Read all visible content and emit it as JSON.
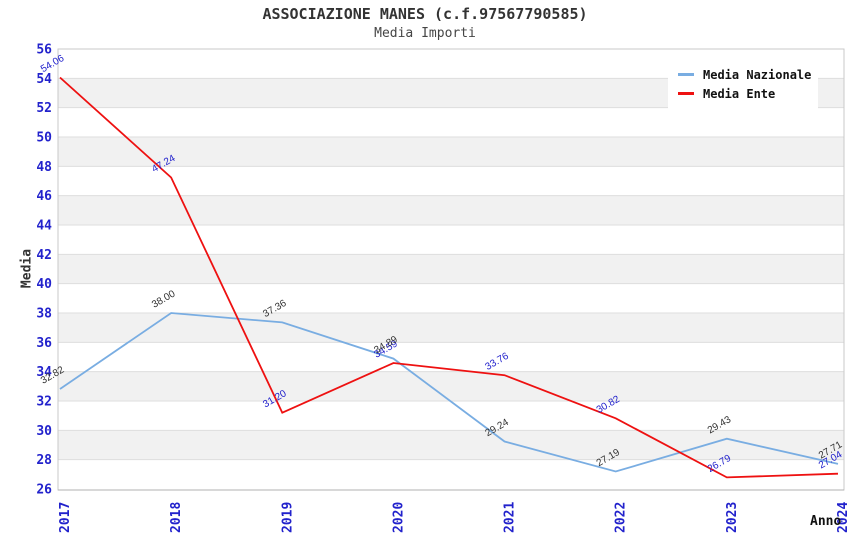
{
  "chart_data": {
    "type": "line",
    "title": "ASSOCIAZIONE MANES (c.f.97567790585)",
    "subtitle": "Media Importi",
    "xlabel": "Anno",
    "ylabel": "Media",
    "x": [
      2017,
      2018,
      2019,
      2020,
      2021,
      2022,
      2023,
      2024
    ],
    "series": [
      {
        "name": "Media Nazionale",
        "color": "#79ade2",
        "label_color": "#333333",
        "values": [
          32.82,
          38.0,
          37.36,
          34.89,
          29.24,
          27.19,
          29.43,
          27.71
        ]
      },
      {
        "name": "Media Ente",
        "color": "#ee1111",
        "label_color": "#2222cc",
        "values": [
          54.06,
          47.24,
          31.2,
          34.59,
          33.76,
          30.82,
          26.79,
          27.04
        ]
      }
    ],
    "ylim": [
      26,
      56
    ],
    "ytick_step": 2,
    "tick_label_color": "#2222cc",
    "band_color": "#f1f1f1",
    "grid_color": "#dedede",
    "border_color": "#c9c9c9",
    "grid": "horizontal-bands",
    "legend_position": "top-right",
    "data_label_rotation_deg": -30,
    "tick_rotation_x_deg": -90
  }
}
